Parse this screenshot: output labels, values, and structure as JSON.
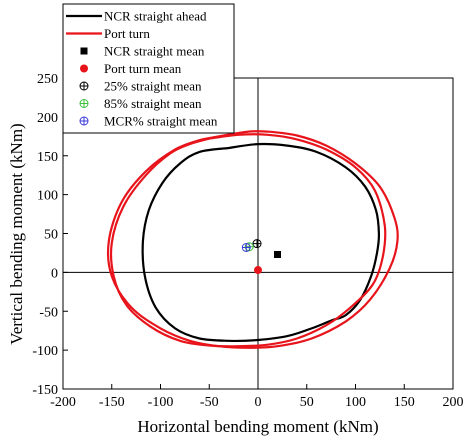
{
  "chart_data": {
    "type": "scatter",
    "title": "",
    "xlabel": "Horizontal bending moment (kNm)",
    "ylabel": "Vertical bending moment (kNm)",
    "xlim": [
      -200,
      200
    ],
    "ylim": [
      -150,
      250
    ],
    "xticks": [
      "-200",
      "-150",
      "-100",
      "-50",
      "0",
      "50",
      "100",
      "150",
      "200"
    ],
    "yticks": [
      "-150",
      "-100",
      "-50",
      "0",
      "50",
      "100",
      "150",
      "200",
      "250"
    ],
    "grid": false,
    "legend_position": "top-left",
    "series": [
      {
        "name": "NCR straight ahead",
        "kind": "line",
        "color": "#000000",
        "x": [
          -30,
          0,
          30,
          60,
          90,
          110,
          121,
          124,
          122,
          116,
          105,
          90,
          75,
          55,
          30,
          0,
          -30,
          -60,
          -85,
          -105,
          -116,
          -118,
          -112,
          -98,
          -80,
          -60,
          -30
        ],
        "y": [
          160,
          165,
          163,
          155,
          135,
          110,
          80,
          50,
          25,
          -5,
          -35,
          -55,
          -62,
          -72,
          -82,
          -87,
          -88,
          -85,
          -72,
          -45,
          -5,
          40,
          80,
          115,
          140,
          155,
          160
        ]
      },
      {
        "name": "Port  turn",
        "kind": "line",
        "color": "#e8141b",
        "x": [
          -40,
          -10,
          10,
          40,
          70,
          100,
          125,
          140,
          143,
          135,
          115,
          90,
          55,
          20,
          -10,
          -40,
          -70,
          -100,
          -130,
          -150,
          -153,
          -140,
          -115,
          -85,
          -60,
          -40
        ],
        "y": [
          175,
          181,
          181,
          176,
          163,
          140,
          110,
          70,
          40,
          5,
          -35,
          -63,
          -85,
          -95,
          -97,
          -95,
          -88,
          -72,
          -45,
          -5,
          40,
          90,
          130,
          158,
          170,
          175
        ]
      },
      {
        "name": "Port  turn",
        "kind": "line",
        "color": "#e8141b",
        "x": [
          -50,
          -20,
          10,
          40,
          70,
          100,
          120,
          130,
          128,
          118,
          95,
          70,
          40,
          10,
          -20,
          -50,
          -80,
          -110,
          -135,
          -148,
          -150,
          -138,
          -115,
          -90,
          -70,
          -50
        ],
        "y": [
          172,
          177,
          177,
          171,
          158,
          135,
          105,
          60,
          20,
          -15,
          -45,
          -68,
          -85,
          -93,
          -95,
          -94,
          -88,
          -70,
          -42,
          -5,
          38,
          85,
          125,
          153,
          165,
          172
        ]
      },
      {
        "name": "NCR straight mean",
        "kind": "marker",
        "marker": "square",
        "color": "#000000",
        "x": [
          20
        ],
        "y": [
          23
        ]
      },
      {
        "name": "Port turn mean",
        "kind": "marker",
        "marker": "circle",
        "color": "#e8141b",
        "x": [
          0
        ],
        "y": [
          3
        ]
      },
      {
        "name": "25% straight mean",
        "kind": "marker",
        "marker": "crosshair",
        "color": "#000000",
        "x": [
          -1
        ],
        "y": [
          37
        ]
      },
      {
        "name": "85% straight mean",
        "kind": "marker",
        "marker": "crosshair",
        "color": "#3dbf3d",
        "x": [
          -9
        ],
        "y": [
          33
        ]
      },
      {
        "name": "MCR% straight mean",
        "kind": "marker",
        "marker": "crosshair",
        "color": "#3a3ad6",
        "x": [
          -12
        ],
        "y": [
          32
        ]
      }
    ],
    "legend": [
      {
        "label": "NCR straight ahead",
        "symbol": "line",
        "color": "#000000"
      },
      {
        "label": "Port  turn",
        "symbol": "line",
        "color": "#e8141b"
      },
      {
        "label": "NCR straight mean",
        "symbol": "square",
        "color": "#000000"
      },
      {
        "label": "Port turn mean",
        "symbol": "circle",
        "color": "#e8141b"
      },
      {
        "label": "25% straight mean",
        "symbol": "crosshair",
        "color": "#000000"
      },
      {
        "label": "85% straight mean",
        "symbol": "crosshair",
        "color": "#3dbf3d"
      },
      {
        "label": "MCR% straight mean",
        "symbol": "crosshair",
        "color": "#3a3ad6"
      }
    ]
  }
}
